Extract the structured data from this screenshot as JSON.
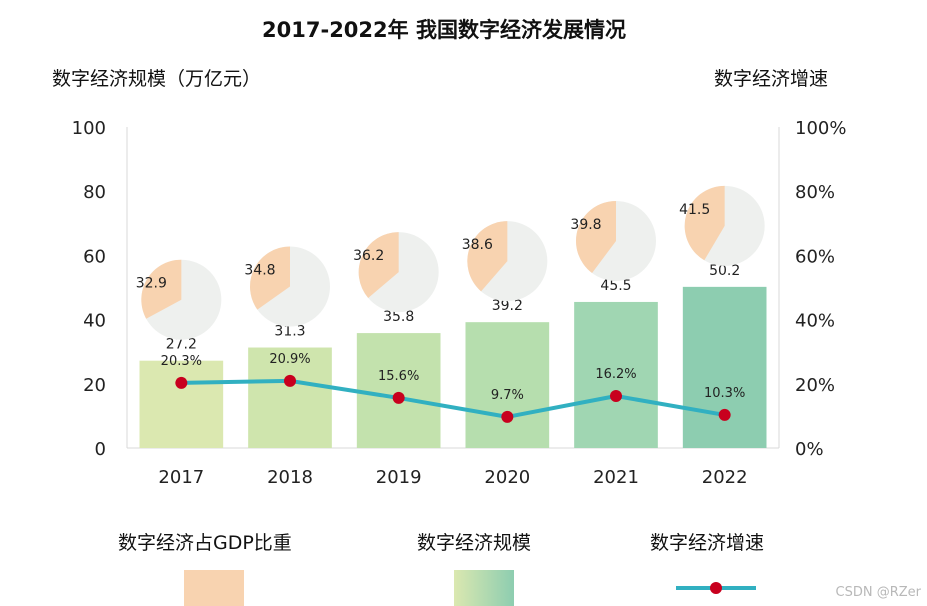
{
  "chart_data": {
    "type": "bar",
    "title": "2017-2022年 我国数字经济发展情况",
    "ylabel": "数字经济规模（万亿元）",
    "y2label": "数字经济增速",
    "categories": [
      "2017",
      "2018",
      "2019",
      "2020",
      "2021",
      "2022"
    ],
    "ylim": [
      0,
      100
    ],
    "y2lim": [
      0,
      1
    ],
    "yticks": [
      "0",
      "20",
      "40",
      "60",
      "80",
      "100"
    ],
    "y2ticks": [
      "0%",
      "20%",
      "40%",
      "60%",
      "80%",
      "100%"
    ],
    "series": [
      {
        "name": "数字经济规模",
        "kind": "bar",
        "axis": "left",
        "values": [
          27.2,
          31.3,
          35.8,
          39.2,
          45.5,
          50.2
        ],
        "labels": [
          "27.2",
          "31.3",
          "35.8",
          "39.2",
          "45.5",
          "50.2"
        ],
        "colors": [
          "#dbe8b0",
          "#cfe5ad",
          "#c3e2ad",
          "#b6deae",
          "#a0d6b2",
          "#8dcdb0"
        ]
      },
      {
        "name": "数字经济增速",
        "kind": "line",
        "axis": "right",
        "values": [
          0.203,
          0.209,
          0.156,
          0.097,
          0.162,
          0.103
        ],
        "labels": [
          "20.3%",
          "20.9%",
          "15.6%",
          "9.7%",
          "16.2%",
          "10.3%"
        ],
        "line_color": "#31b0c1",
        "marker_color": "#c8001e"
      },
      {
        "name": "数字经济占GDP比重",
        "kind": "pie",
        "values": [
          32.9,
          34.8,
          36.2,
          38.6,
          39.8,
          41.5
        ],
        "labels": [
          "32.9",
          "34.8",
          "36.2",
          "38.6",
          "39.8",
          "41.5"
        ],
        "color": "#f8d3b0",
        "rest_color": "#eef0ee"
      }
    ],
    "grid": false,
    "legend_position": "bottom"
  },
  "legend": {
    "items": [
      {
        "label": "数字经济占GDP比重"
      },
      {
        "label": "数字经济规模"
      },
      {
        "label": "数字经济增速"
      }
    ]
  },
  "watermark": "CSDN @RZer"
}
